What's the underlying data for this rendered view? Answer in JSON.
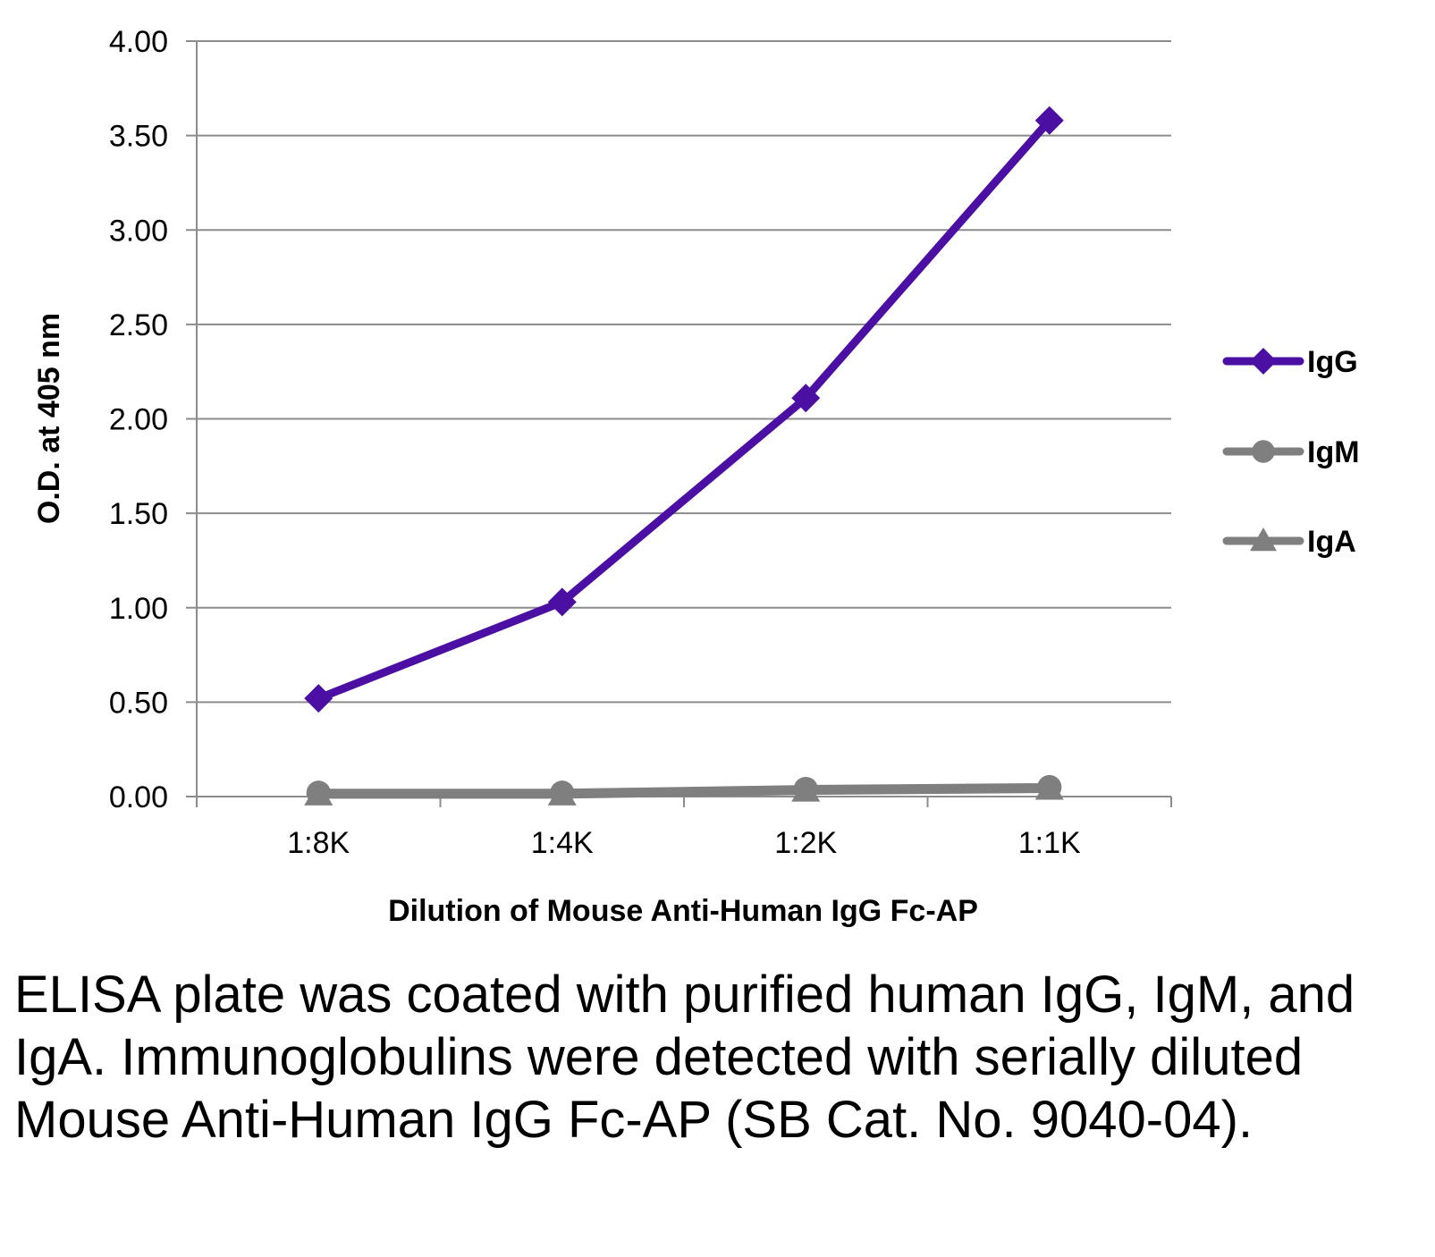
{
  "chart_data": {
    "type": "line",
    "title": "",
    "xlabel": "Dilution of Mouse Anti-Human IgG Fc-AP",
    "ylabel": "O.D. at 405 nm",
    "categories": [
      "1:8K",
      "1:4K",
      "1:2K",
      "1:1K"
    ],
    "ylim": [
      0,
      4
    ],
    "yticks": [
      "0.00",
      "0.50",
      "1.00",
      "1.50",
      "2.00",
      "2.50",
      "3.00",
      "3.50",
      "4.00"
    ],
    "ytick_values": [
      0,
      0.5,
      1.0,
      1.5,
      2.0,
      2.5,
      3.0,
      3.5,
      4.0
    ],
    "grid": "horizontal",
    "legend_position": "right",
    "series": [
      {
        "name": "IgG",
        "values": [
          0.52,
          1.03,
          2.11,
          3.58
        ],
        "color": "#4b0fa3",
        "marker": "diamond"
      },
      {
        "name": "IgM",
        "values": [
          0.02,
          0.02,
          0.04,
          0.05
        ],
        "color": "#7f7f7f",
        "marker": "circle"
      },
      {
        "name": "IgA",
        "values": [
          0.01,
          0.01,
          0.03,
          0.04
        ],
        "color": "#7f7f7f",
        "marker": "triangle"
      }
    ]
  },
  "caption": "ELISA plate was coated with purified human IgG, IgM, and IgA.  Immunoglobulins were detected with serially diluted Mouse Anti-Human IgG Fc-AP (SB Cat. No. 9040-04)."
}
